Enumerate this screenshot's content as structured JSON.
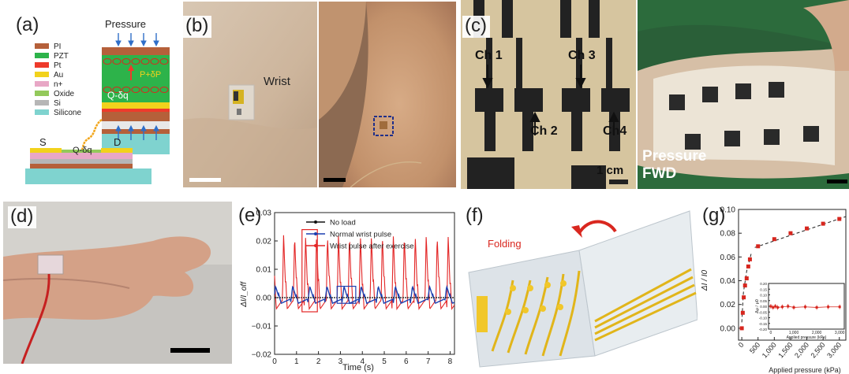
{
  "panels": {
    "a": {
      "label": "(a)",
      "pressure_label": "Pressure",
      "legend": [
        {
          "name": "PI",
          "color": "#b5603a"
        },
        {
          "name": "PZT",
          "color": "#2db34a"
        },
        {
          "name": "Pt",
          "color": "#ee3a2b"
        },
        {
          "name": "Au",
          "color": "#f2d21c"
        },
        {
          "name": "n+",
          "color": "#e8a7c6"
        },
        {
          "name": "Oxide",
          "color": "#93c95b"
        },
        {
          "name": "Si",
          "color": "#b6b6b6"
        },
        {
          "name": "Silicone",
          "color": "#7fd3cf"
        }
      ],
      "charge_top": "P+δP",
      "charge_bottom": "Q-δq",
      "source_label": "S",
      "drain_label": "D",
      "gate_label": "Q-δq"
    },
    "b": {
      "label": "(b)",
      "wrist_label": "Wrist"
    },
    "c": {
      "label": "(c)",
      "channels": [
        "Ch 1",
        "Ch 2",
        "Ch 3",
        "Ch4"
      ],
      "scale_label": "1 cm",
      "pressure_text": "Pressure",
      "fwd_text": "FWD"
    },
    "d": {
      "label": "(d)"
    },
    "e": {
      "label": "(e)"
    },
    "f": {
      "label": "(f)",
      "folding_label": "Folding"
    },
    "g": {
      "label": "(g)"
    }
  },
  "chart_data": [
    {
      "id": "e",
      "type": "line",
      "xlabel": "Time (s)",
      "ylabel": "ΔI/I_off",
      "xlim": [
        0,
        8.2
      ],
      "ylim": [
        -0.02,
        0.03
      ],
      "xticks": [
        "0",
        "1",
        "2",
        "3",
        "4",
        "5",
        "6",
        "7",
        "8"
      ],
      "yticks": [
        "−0.02",
        "−0.01",
        "0.00",
        "0.01",
        "0.02",
        "0.03"
      ],
      "legend": [
        {
          "name": "No load",
          "color": "#111111"
        },
        {
          "name": "Normal wrist pulse",
          "color": "#1b3fb0"
        },
        {
          "name": "Wrist pulse after exercise",
          "color": "#e32626"
        }
      ],
      "legend_position": "top-center",
      "series": [
        {
          "name": "No load",
          "color": "#111111",
          "baseline": 0.0
        },
        {
          "name": "Normal wrist pulse",
          "color": "#1b3fb0",
          "period": 0.78,
          "peak": 0.004,
          "trough": -0.002
        },
        {
          "name": "Wrist pulse after exercise",
          "color": "#e32626",
          "period": 0.5,
          "peak": 0.022,
          "trough": -0.004
        }
      ]
    },
    {
      "id": "g",
      "type": "scatter",
      "xlabel": "Applied pressure (kPa)",
      "ylabel": "ΔI / I0",
      "xlim": [
        -100,
        3200
      ],
      "ylim": [
        -0.01,
        0.1
      ],
      "xticks": [
        "0",
        "500",
        "1,000",
        "1,500",
        "2,000",
        "2,500",
        "3,000"
      ],
      "yticks": [
        "0.00",
        "0.02",
        "0.04",
        "0.06",
        "0.08",
        "0.10"
      ],
      "series": [
        {
          "name": "ΔI/I0",
          "color": "#d7261e",
          "x": [
            0,
            30,
            60,
            100,
            150,
            200,
            250,
            500,
            1000,
            1500,
            2000,
            2500,
            3000
          ],
          "y": [
            0.0,
            0.013,
            0.026,
            0.036,
            0.042,
            0.052,
            0.058,
            0.069,
            0.075,
            0.08,
            0.084,
            0.088,
            0.092
          ]
        }
      ],
      "inset": {
        "xlabel": "Applied pressure (kPa)",
        "ylabel": "Δμ / μ0",
        "xlim": [
          -100,
          3200
        ],
        "ylim": [
          -0.2,
          0.2
        ],
        "xticks": [
          "0",
          "1,000",
          "2,000",
          "3,000"
        ],
        "yticks": [
          "-0.20",
          "-0.15",
          "-0.10",
          "-0.05",
          "0.00",
          "0.05",
          "0.10",
          "0.15",
          "0.20"
        ],
        "x": [
          0,
          100,
          200,
          300,
          500,
          750,
          1000,
          1500,
          2000,
          2500,
          3000
        ],
        "y": [
          0.0,
          -0.01,
          0.0,
          -0.01,
          -0.005,
          0.0,
          -0.01,
          -0.005,
          -0.01,
          -0.005,
          -0.005
        ]
      }
    }
  ]
}
